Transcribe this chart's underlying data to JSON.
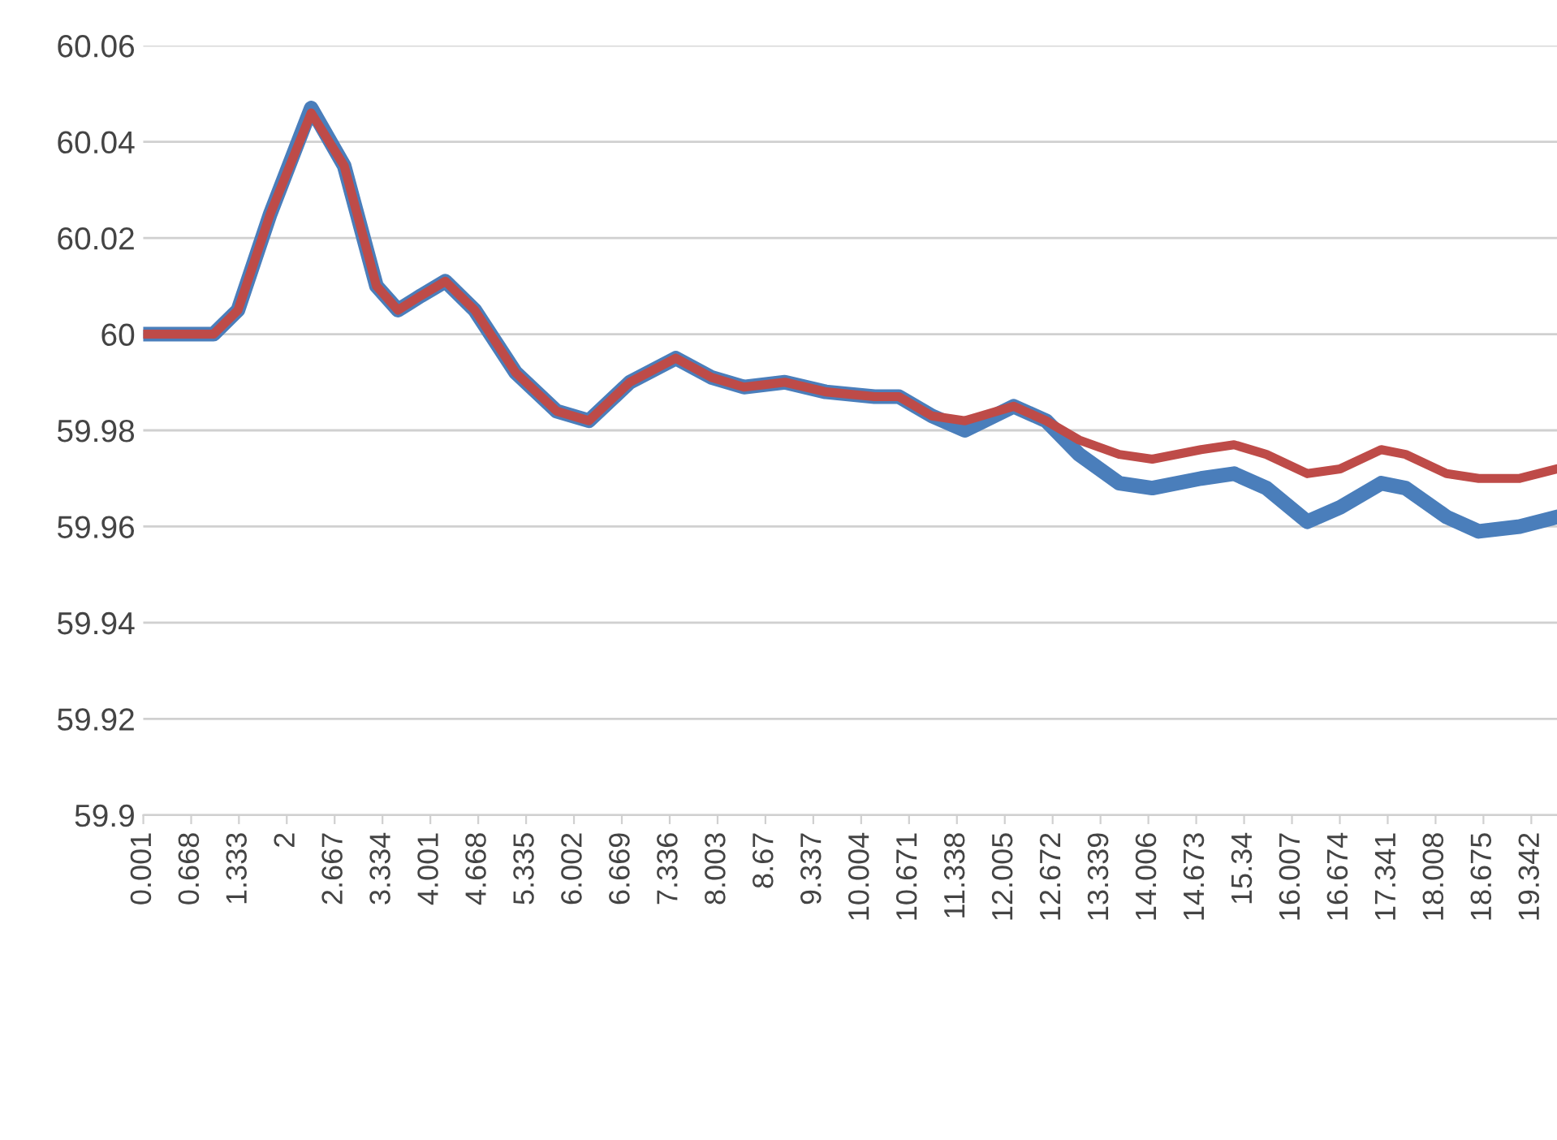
{
  "chart_data": {
    "type": "line",
    "x": [
      0.001,
      0.98,
      1.32,
      1.77,
      2.34,
      2.8,
      3.25,
      3.55,
      3.87,
      4.21,
      4.62,
      5.19,
      5.76,
      6.21,
      6.78,
      7.42,
      7.92,
      8.37,
      8.94,
      9.51,
      10.19,
      10.53,
      10.99,
      11.45,
      12.13,
      12.58,
      13.04,
      13.6,
      14.06,
      14.74,
      15.2,
      15.65,
      16.22,
      16.68,
      17.25,
      17.59,
      18.16,
      18.61,
      19.18,
      19.7
    ],
    "series": [
      {
        "color": "#4a7ebb",
        "values": [
          60.0,
          60.0,
          60.005,
          60.025,
          60.047,
          60.035,
          60.01,
          60.005,
          60.008,
          60.011,
          60.005,
          59.992,
          59.984,
          59.982,
          59.99,
          59.995,
          59.991,
          59.989,
          59.99,
          59.988,
          59.987,
          59.987,
          59.983,
          59.98,
          59.985,
          59.982,
          59.975,
          59.969,
          59.968,
          59.97,
          59.971,
          59.968,
          59.961,
          59.964,
          59.969,
          59.968,
          59.962,
          59.959,
          59.96,
          59.962
        ]
      },
      {
        "color": "#be4b48",
        "values": [
          60.0,
          60.0,
          60.005,
          60.025,
          60.046,
          60.035,
          60.01,
          60.005,
          60.008,
          60.011,
          60.005,
          59.992,
          59.984,
          59.982,
          59.99,
          59.995,
          59.991,
          59.989,
          59.99,
          59.988,
          59.987,
          59.987,
          59.983,
          59.982,
          59.985,
          59.982,
          59.978,
          59.975,
          59.974,
          59.976,
          59.977,
          59.975,
          59.971,
          59.972,
          59.976,
          59.975,
          59.971,
          59.97,
          59.97,
          59.972
        ]
      }
    ],
    "xlim": [
      0,
      19.7
    ],
    "xticks": [
      0.001,
      0.668,
      1.333,
      2,
      2.667,
      3.334,
      4.001,
      4.668,
      5.335,
      6.002,
      6.669,
      7.336,
      8.003,
      8.67,
      9.337,
      10.004,
      10.671,
      11.338,
      12.005,
      12.672,
      13.339,
      14.006,
      14.673,
      15.34,
      16.007,
      16.674,
      17.341,
      18.008,
      18.675,
      19.342
    ],
    "ylim": [
      59.9,
      60.06
    ],
    "yticks": [
      59.9,
      59.92,
      59.94,
      59.96,
      59.98,
      60,
      60.02,
      60.04,
      60.06
    ],
    "grid": "y",
    "line_style": "solid",
    "marker": "none"
  }
}
